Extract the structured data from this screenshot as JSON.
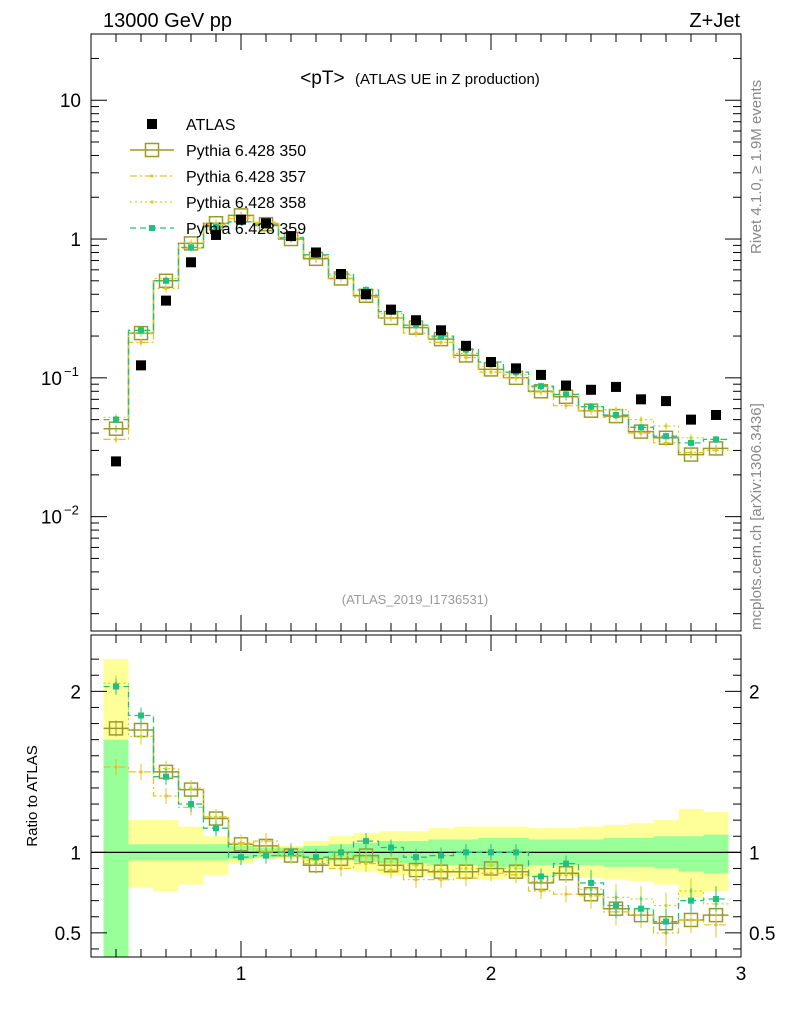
{
  "header": {
    "left": "13000 GeV pp",
    "right": "Z+Jet"
  },
  "side_labels": {
    "version": "Rivet 4.1.0, ≥ 1.9M events",
    "source": "mcplots.cern.ch [arXiv:1306.3436]"
  },
  "chart_data": [
    {
      "type": "line",
      "panel": "main",
      "title_main": "<pT>",
      "title_sub": "(ATLAS UE in Z production)",
      "analysis_id": "(ATLAS_2019_I1736531)",
      "yscale": "log",
      "xlim": [
        0.4,
        3.0
      ],
      "ylim": [
        0.0015,
        30
      ],
      "y_ticks": [
        {
          "value": 10,
          "label": "10"
        },
        {
          "value": 1,
          "label": "1"
        },
        {
          "value": 0.1,
          "base": "10",
          "exp": "−1"
        },
        {
          "value": 0.01,
          "base": "10",
          "exp": "−2"
        }
      ],
      "legend": [
        "ATLAS",
        "Pythia 6.428 350",
        "Pythia 6.428 357",
        "Pythia 6.428 358",
        "Pythia 6.428 359"
      ],
      "x": [
        0.5,
        0.6,
        0.7,
        0.8,
        0.9,
        1.0,
        1.1,
        1.2,
        1.3,
        1.4,
        1.5,
        1.6,
        1.7,
        1.8,
        1.9,
        2.0,
        2.1,
        2.2,
        2.3,
        2.4,
        2.5,
        2.6,
        2.7,
        2.8,
        2.9
      ],
      "data": {
        "name": "ATLAS",
        "values": [
          0.025,
          0.123,
          0.36,
          0.68,
          1.07,
          1.38,
          1.3,
          1.05,
          0.8,
          0.56,
          0.4,
          0.31,
          0.26,
          0.22,
          0.17,
          0.13,
          0.117,
          0.105,
          0.088,
          0.082,
          0.086,
          0.07,
          0.068,
          0.05,
          0.054
        ]
      },
      "series": [
        {
          "name": "Pythia 6.428 350",
          "color": "#9a9a2c",
          "values": [
            0.043,
            0.21,
            0.5,
            0.93,
            1.3,
            1.48,
            1.28,
            1.0,
            0.72,
            0.52,
            0.39,
            0.27,
            0.23,
            0.19,
            0.145,
            0.115,
            0.1,
            0.08,
            0.073,
            0.058,
            0.053,
            0.041,
            0.037,
            0.028,
            0.031
          ]
        },
        {
          "name": "Pythia 6.428 357",
          "color": "#e8c020",
          "values": [
            0.036,
            0.18,
            0.44,
            0.86,
            1.27,
            1.4,
            1.32,
            1.01,
            0.74,
            0.52,
            0.38,
            0.27,
            0.21,
            0.18,
            0.14,
            0.11,
            0.1,
            0.079,
            0.063,
            0.058,
            0.052,
            0.04,
            0.034,
            0.029,
            0.03
          ]
        },
        {
          "name": "Pythia 6.428 358",
          "color": "#c8d820",
          "values": [
            0.052,
            0.21,
            0.52,
            0.94,
            1.3,
            1.45,
            1.3,
            1.03,
            0.76,
            0.55,
            0.4,
            0.29,
            0.24,
            0.195,
            0.15,
            0.12,
            0.105,
            0.085,
            0.075,
            0.062,
            0.059,
            0.05,
            0.045,
            0.037,
            0.036
          ]
        },
        {
          "name": "Pythia 6.428 359",
          "color": "#20c080",
          "values": [
            0.05,
            0.22,
            0.5,
            0.87,
            1.22,
            1.33,
            1.25,
            1.02,
            0.77,
            0.56,
            0.43,
            0.3,
            0.24,
            0.2,
            0.16,
            0.13,
            0.11,
            0.087,
            0.076,
            0.062,
            0.054,
            0.044,
            0.038,
            0.034,
            0.036
          ]
        }
      ]
    },
    {
      "type": "line",
      "panel": "ratio",
      "ylabel": "Ratio to ATLAS",
      "xlim": [
        0.4,
        3.0
      ],
      "ylim": [
        0.35,
        2.35
      ],
      "x_ticks": [
        {
          "value": 1,
          "label": "1"
        },
        {
          "value": 2,
          "label": "2"
        },
        {
          "value": 3,
          "label": "3"
        }
      ],
      "y_ticks": [
        {
          "value": 2,
          "label": "2"
        },
        {
          "value": 1,
          "label": "1"
        },
        {
          "value": 0.5,
          "label": "0.5"
        }
      ],
      "x": [
        0.5,
        0.6,
        0.7,
        0.8,
        0.9,
        1.0,
        1.1,
        1.2,
        1.3,
        1.4,
        1.5,
        1.6,
        1.7,
        1.8,
        1.9,
        2.0,
        2.1,
        2.2,
        2.3,
        2.4,
        2.5,
        2.6,
        2.7,
        2.8,
        2.9
      ],
      "band_yellow": [
        [
          0.35,
          2.2
        ],
        [
          0.78,
          1.2
        ],
        [
          0.76,
          1.2
        ],
        [
          0.8,
          1.16
        ],
        [
          0.86,
          1.1
        ],
        [
          0.93,
          1.06
        ],
        [
          0.96,
          1.04
        ],
        [
          0.96,
          1.04
        ],
        [
          0.93,
          1.07
        ],
        [
          0.9,
          1.1
        ],
        [
          0.88,
          1.12
        ],
        [
          0.86,
          1.13
        ],
        [
          0.86,
          1.13
        ],
        [
          0.85,
          1.15
        ],
        [
          0.84,
          1.16
        ],
        [
          0.83,
          1.16
        ],
        [
          0.84,
          1.16
        ],
        [
          0.85,
          1.15
        ],
        [
          0.85,
          1.15
        ],
        [
          0.84,
          1.16
        ],
        [
          0.83,
          1.17
        ],
        [
          0.82,
          1.18
        ],
        [
          0.8,
          1.2
        ],
        [
          0.72,
          1.27
        ],
        [
          0.76,
          1.25
        ]
      ],
      "band_green": [
        [
          0.35,
          1.7
        ],
        [
          0.95,
          1.05
        ],
        [
          0.95,
          1.05
        ],
        [
          0.95,
          1.05
        ],
        [
          0.95,
          1.05
        ],
        [
          0.96,
          1.04
        ],
        [
          0.97,
          1.03
        ],
        [
          0.97,
          1.03
        ],
        [
          0.96,
          1.04
        ],
        [
          0.95,
          1.05
        ],
        [
          0.94,
          1.06
        ],
        [
          0.93,
          1.07
        ],
        [
          0.93,
          1.07
        ],
        [
          0.92,
          1.08
        ],
        [
          0.92,
          1.08
        ],
        [
          0.91,
          1.09
        ],
        [
          0.91,
          1.09
        ],
        [
          0.92,
          1.08
        ],
        [
          0.92,
          1.08
        ],
        [
          0.92,
          1.08
        ],
        [
          0.91,
          1.09
        ],
        [
          0.91,
          1.09
        ],
        [
          0.9,
          1.1
        ],
        [
          0.88,
          1.1
        ],
        [
          0.87,
          1.11
        ]
      ],
      "series": [
        {
          "name": "Pythia 6.428 350",
          "values": [
            1.77,
            1.76,
            1.5,
            1.39,
            1.21,
            1.05,
            1.04,
            0.98,
            0.92,
            0.96,
            0.98,
            0.92,
            0.89,
            0.88,
            0.88,
            0.9,
            0.88,
            0.81,
            0.87,
            0.74,
            0.65,
            0.61,
            0.56,
            0.58,
            0.61
          ]
        },
        {
          "name": "Pythia 6.428 357",
          "values": [
            1.53,
            1.5,
            1.35,
            1.28,
            1.22,
            1.06,
            1.07,
            1.01,
            0.93,
            0.9,
            0.93,
            0.89,
            0.83,
            0.83,
            0.84,
            0.87,
            0.86,
            0.76,
            0.74,
            0.73,
            0.63,
            0.61,
            0.5,
            0.58,
            0.55
          ]
        },
        {
          "name": "Pythia 6.428 358",
          "values": [
            2.05,
            1.72,
            1.52,
            1.4,
            1.22,
            1.05,
            1.01,
            0.98,
            0.95,
            0.98,
            0.97,
            0.94,
            0.92,
            0.89,
            0.9,
            0.92,
            0.9,
            0.82,
            0.86,
            0.77,
            0.72,
            0.71,
            0.67,
            0.76,
            0.68
          ]
        },
        {
          "name": "Pythia 6.428 359",
          "values": [
            2.03,
            1.85,
            1.47,
            1.3,
            1.15,
            0.97,
            0.98,
            1.0,
            0.97,
            1.0,
            1.07,
            1.03,
            0.97,
            0.98,
            1.0,
            1.0,
            1.0,
            0.85,
            0.93,
            0.81,
            0.67,
            0.65,
            0.57,
            0.7,
            0.71
          ]
        }
      ]
    }
  ]
}
